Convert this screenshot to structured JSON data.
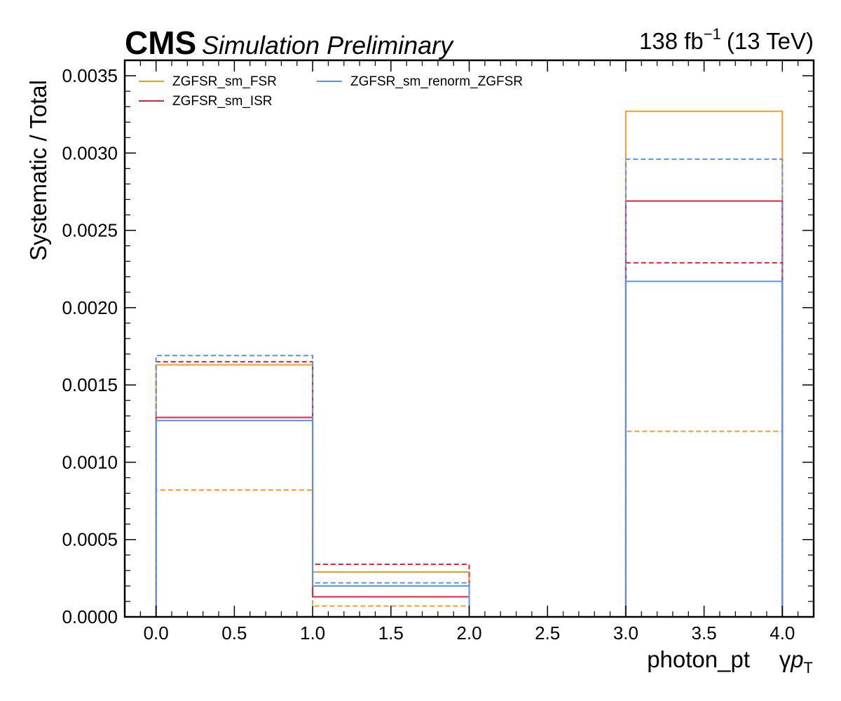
{
  "header": {
    "experiment": "CMS",
    "subtitle": "Simulation Preliminary",
    "lumi_value": "138 fb",
    "lumi_exp": "−1",
    "energy": "(13 TeV)"
  },
  "chart_data": {
    "type": "step",
    "xlabel": "photon_pt",
    "xlabel_symbol_prefix": "γ",
    "xlabel_symbol_var": "p",
    "xlabel_symbol_sub": "T",
    "ylabel": "Systematic / Total",
    "xlim": [
      -0.2,
      4.2
    ],
    "ylim": [
      0,
      0.0036
    ],
    "xticks": [
      0.0,
      0.5,
      1.0,
      1.5,
      2.0,
      2.5,
      3.0,
      3.5,
      4.0
    ],
    "xtick_labels": [
      "0.0",
      "0.5",
      "1.0",
      "1.5",
      "2.0",
      "2.5",
      "3.0",
      "3.5",
      "4.0"
    ],
    "yticks": [
      0.0,
      0.0005,
      0.001,
      0.0015,
      0.002,
      0.0025,
      0.003,
      0.0035
    ],
    "ytick_labels": [
      "0.0000",
      "0.0005",
      "0.0010",
      "0.0015",
      "0.0020",
      "0.0025",
      "0.0030",
      "0.0035"
    ],
    "bin_edges": [
      0,
      1,
      2,
      3,
      4
    ],
    "legend_position": "top-left",
    "series": [
      {
        "name": "ZGFSR_sm_FSR",
        "variation": "up",
        "style": "solid",
        "color": "#f89c20",
        "values": [
          0.00163,
          0.00029,
          0.0,
          0.00327
        ]
      },
      {
        "name": "ZGFSR_sm_FSR",
        "variation": "down",
        "style": "dashed",
        "color": "#f89c20",
        "values": [
          0.00082,
          7e-05,
          0.0,
          0.0012
        ]
      },
      {
        "name": "ZGFSR_sm_ISR",
        "variation": "up",
        "style": "solid",
        "color": "#e42536",
        "values": [
          0.00129,
          0.00013,
          0.0,
          0.00269
        ]
      },
      {
        "name": "ZGFSR_sm_ISR",
        "variation": "down",
        "style": "dashed",
        "color": "#e42536",
        "values": [
          0.00165,
          0.00034,
          0.0,
          0.00229
        ]
      },
      {
        "name": "ZGFSR_sm_renorm_ZGFSR",
        "variation": "up",
        "style": "solid",
        "color": "#5790fc",
        "values": [
          0.00127,
          0.0002,
          0.0,
          0.00217
        ]
      },
      {
        "name": "ZGFSR_sm_renorm_ZGFSR",
        "variation": "down",
        "style": "dashed",
        "color": "#5790fc",
        "values": [
          0.00169,
          0.00022,
          0.0,
          0.00296
        ]
      }
    ],
    "legend": [
      {
        "label": "ZGFSR_sm_FSR",
        "color": "#f89c20"
      },
      {
        "label": "ZGFSR_sm_ISR",
        "color": "#e42536"
      },
      {
        "label": "ZGFSR_sm_renorm_ZGFSR",
        "color": "#5790fc"
      }
    ]
  }
}
